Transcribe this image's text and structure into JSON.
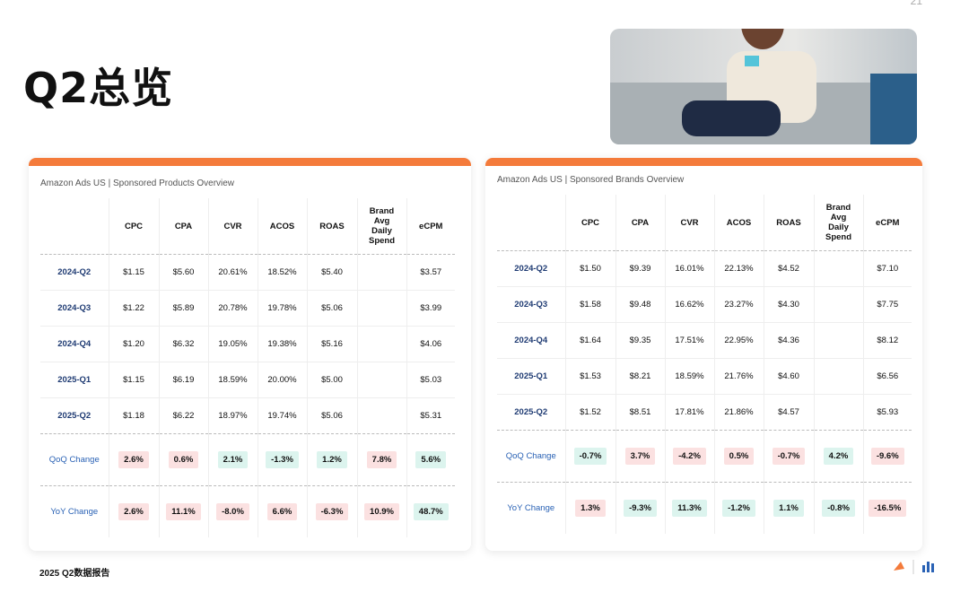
{
  "page_number": "21",
  "title": "Q2总览",
  "footer": "2025 Q2数据报告",
  "tables": [
    {
      "caption": "Amazon Ads US | Sponsored Products Overview",
      "columns": [
        "CPC",
        "CPA",
        "CVR",
        "ACOS",
        "ROAS",
        "Brand Avg Daily Spend",
        "eCPM"
      ],
      "rows": [
        {
          "label": "2024-Q2",
          "cells": [
            "$1.15",
            "$5.60",
            "20.61%",
            "18.52%",
            "$5.40",
            null,
            "$3.57"
          ]
        },
        {
          "label": "2024-Q3",
          "cells": [
            "$1.22",
            "$5.89",
            "20.78%",
            "19.78%",
            "$5.06",
            null,
            "$3.99"
          ]
        },
        {
          "label": "2024-Q4",
          "cells": [
            "$1.20",
            "$6.32",
            "19.05%",
            "19.38%",
            "$5.16",
            null,
            "$4.06"
          ]
        },
        {
          "label": "2025-Q1",
          "cells": [
            "$1.15",
            "$6.19",
            "18.59%",
            "20.00%",
            "$5.00",
            null,
            "$5.03"
          ]
        },
        {
          "label": "2025-Q2",
          "cells": [
            "$1.18",
            "$6.22",
            "18.97%",
            "19.74%",
            "$5.06",
            null,
            "$5.31"
          ]
        }
      ],
      "changes": [
        {
          "label": "QoQ Change",
          "cells": [
            "2.6%",
            "0.6%",
            "2.1%",
            "-1.3%",
            "1.2%",
            "7.8%",
            "5.6%"
          ],
          "tones": [
            "red",
            "red",
            "green",
            "green",
            "green",
            "red",
            "green"
          ]
        },
        {
          "label": "YoY Change",
          "cells": [
            "2.6%",
            "11.1%",
            "-8.0%",
            "6.6%",
            "-6.3%",
            "10.9%",
            "48.7%"
          ],
          "tones": [
            "red",
            "red",
            "red",
            "red",
            "red",
            "red",
            "green"
          ]
        }
      ]
    },
    {
      "caption": "Amazon Ads US | Sponsored Brands Overview",
      "columns": [
        "CPC",
        "CPA",
        "CVR",
        "ACOS",
        "ROAS",
        "Brand Avg Daily Spend",
        "eCPM"
      ],
      "rows": [
        {
          "label": "2024-Q2",
          "cells": [
            "$1.50",
            "$9.39",
            "16.01%",
            "22.13%",
            "$4.52",
            null,
            "$7.10"
          ]
        },
        {
          "label": "2024-Q3",
          "cells": [
            "$1.58",
            "$9.48",
            "16.62%",
            "23.27%",
            "$4.30",
            null,
            "$7.75"
          ]
        },
        {
          "label": "2024-Q4",
          "cells": [
            "$1.64",
            "$9.35",
            "17.51%",
            "22.95%",
            "$4.36",
            null,
            "$8.12"
          ]
        },
        {
          "label": "2025-Q1",
          "cells": [
            "$1.53",
            "$8.21",
            "18.59%",
            "21.76%",
            "$4.60",
            null,
            "$6.56"
          ]
        },
        {
          "label": "2025-Q2",
          "cells": [
            "$1.52",
            "$8.51",
            "17.81%",
            "21.86%",
            "$4.57",
            null,
            "$5.93"
          ]
        }
      ],
      "changes": [
        {
          "label": "QoQ Change",
          "cells": [
            "-0.7%",
            "3.7%",
            "-4.2%",
            "0.5%",
            "-0.7%",
            "4.2%",
            "-9.6%"
          ],
          "tones": [
            "green",
            "red",
            "red",
            "red",
            "red",
            "green",
            "red"
          ]
        },
        {
          "label": "YoY Change",
          "cells": [
            "1.3%",
            "-9.3%",
            "11.3%",
            "-1.2%",
            "1.1%",
            "-0.8%",
            "-16.5%"
          ],
          "tones": [
            "red",
            "green",
            "green",
            "green",
            "green",
            "green",
            "red"
          ]
        }
      ]
    }
  ]
}
